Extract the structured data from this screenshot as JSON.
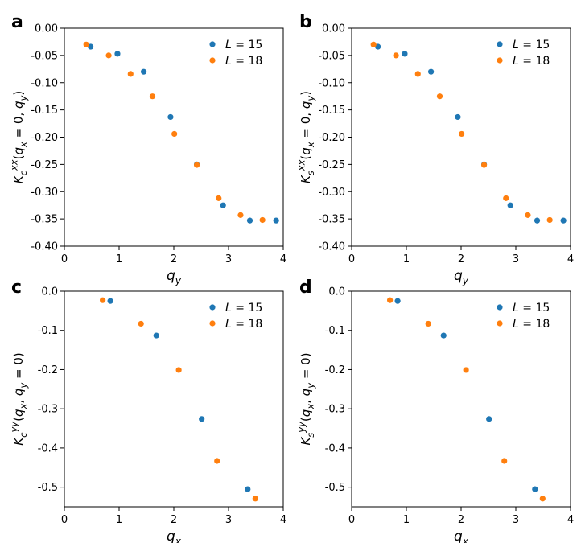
{
  "figure": {
    "colors": {
      "L15": "#1f77b4",
      "L18": "#ff7f0e"
    }
  },
  "chart_data": [
    {
      "type": "scatter",
      "panel": "a",
      "xlabel": "q_y",
      "ylabel": "K_c^xx(q_x = 0, q_y)",
      "xlim": [
        0,
        4
      ],
      "ylim": [
        -0.4,
        0.0
      ],
      "xticks": [
        "0",
        "1",
        "2",
        "3",
        "4"
      ],
      "yticks": [
        "0.00",
        "-0.05",
        "-0.10",
        "-0.15",
        "-0.20",
        "-0.25",
        "-0.30",
        "-0.35",
        "-0.40"
      ],
      "ytick_values": [
        0.0,
        -0.05,
        -0.1,
        -0.15,
        -0.2,
        -0.25,
        -0.3,
        -0.35,
        -0.4
      ],
      "legend_position": "top-right",
      "series": [
        {
          "name": "L = 15",
          "key": "L15",
          "x": [
            0.48,
            0.97,
            1.45,
            1.94,
            2.42,
            2.9,
            3.39,
            3.87
          ],
          "y": [
            -0.034,
            -0.047,
            -0.08,
            -0.163,
            -0.25,
            -0.325,
            -0.353,
            -0.353
          ]
        },
        {
          "name": "L = 18",
          "key": "L18",
          "x": [
            0.4,
            0.81,
            1.21,
            1.61,
            2.01,
            2.42,
            2.82,
            3.22,
            3.62
          ],
          "y": [
            -0.03,
            -0.05,
            -0.084,
            -0.125,
            -0.194,
            -0.251,
            -0.312,
            -0.343,
            -0.352
          ]
        }
      ]
    },
    {
      "type": "scatter",
      "panel": "b",
      "xlabel": "q_y",
      "ylabel": "K_s^xx(q_x = 0, q_y)",
      "xlim": [
        0,
        4
      ],
      "ylim": [
        -0.4,
        0.0
      ],
      "xticks": [
        "0",
        "1",
        "2",
        "3",
        "4"
      ],
      "yticks": [
        "0.00",
        "-0.05",
        "-0.10",
        "-0.15",
        "-0.20",
        "-0.25",
        "-0.30",
        "-0.35",
        "-0.40"
      ],
      "ytick_values": [
        0.0,
        -0.05,
        -0.1,
        -0.15,
        -0.2,
        -0.25,
        -0.3,
        -0.35,
        -0.4
      ],
      "legend_position": "top-right",
      "series": [
        {
          "name": "L = 15",
          "key": "L15",
          "x": [
            0.48,
            0.97,
            1.45,
            1.94,
            2.42,
            2.9,
            3.39,
            3.87
          ],
          "y": [
            -0.034,
            -0.047,
            -0.08,
            -0.163,
            -0.25,
            -0.325,
            -0.353,
            -0.353
          ]
        },
        {
          "name": "L = 18",
          "key": "L18",
          "x": [
            0.4,
            0.81,
            1.21,
            1.61,
            2.01,
            2.42,
            2.82,
            3.22,
            3.62
          ],
          "y": [
            -0.03,
            -0.05,
            -0.084,
            -0.125,
            -0.194,
            -0.251,
            -0.312,
            -0.343,
            -0.352
          ]
        }
      ]
    },
    {
      "type": "scatter",
      "panel": "c",
      "xlabel": "q_x",
      "ylabel": "K_c^yy(q_x, q_y = 0)",
      "xlim": [
        0,
        4
      ],
      "ylim": [
        -0.55,
        0.0
      ],
      "xticks": [
        "0",
        "1",
        "2",
        "3",
        "4"
      ],
      "yticks": [
        "0.0",
        "-0.1",
        "-0.2",
        "-0.3",
        "-0.4",
        "-0.5"
      ],
      "ytick_values": [
        0.0,
        -0.1,
        -0.2,
        -0.3,
        -0.4,
        -0.5
      ],
      "legend_position": "top-right",
      "series": [
        {
          "name": "L = 15",
          "key": "L15",
          "x": [
            0.84,
            1.68,
            2.51,
            3.35
          ],
          "y": [
            -0.025,
            -0.113,
            -0.326,
            -0.505
          ]
        },
        {
          "name": "L = 18",
          "key": "L18",
          "x": [
            0.7,
            1.4,
            2.09,
            2.79,
            3.49
          ],
          "y": [
            -0.023,
            -0.083,
            -0.201,
            -0.433,
            -0.529
          ]
        }
      ]
    },
    {
      "type": "scatter",
      "panel": "d",
      "xlabel": "q_x",
      "ylabel": "K_s^yy(q_x, q_y = 0)",
      "xlim": [
        0,
        4
      ],
      "ylim": [
        -0.55,
        0.0
      ],
      "xticks": [
        "0",
        "1",
        "2",
        "3",
        "4"
      ],
      "yticks": [
        "0.0",
        "-0.1",
        "-0.2",
        "-0.3",
        "-0.4",
        "-0.5"
      ],
      "ytick_values": [
        0.0,
        -0.1,
        -0.2,
        -0.3,
        -0.4,
        -0.5
      ],
      "legend_position": "top-right",
      "series": [
        {
          "name": "L = 15",
          "key": "L15",
          "x": [
            0.84,
            1.68,
            2.51,
            3.35
          ],
          "y": [
            -0.025,
            -0.113,
            -0.326,
            -0.505
          ]
        },
        {
          "name": "L = 18",
          "key": "L18",
          "x": [
            0.7,
            1.4,
            2.09,
            2.79,
            3.49
          ],
          "y": [
            -0.023,
            -0.083,
            -0.201,
            -0.433,
            -0.529
          ]
        }
      ]
    }
  ]
}
